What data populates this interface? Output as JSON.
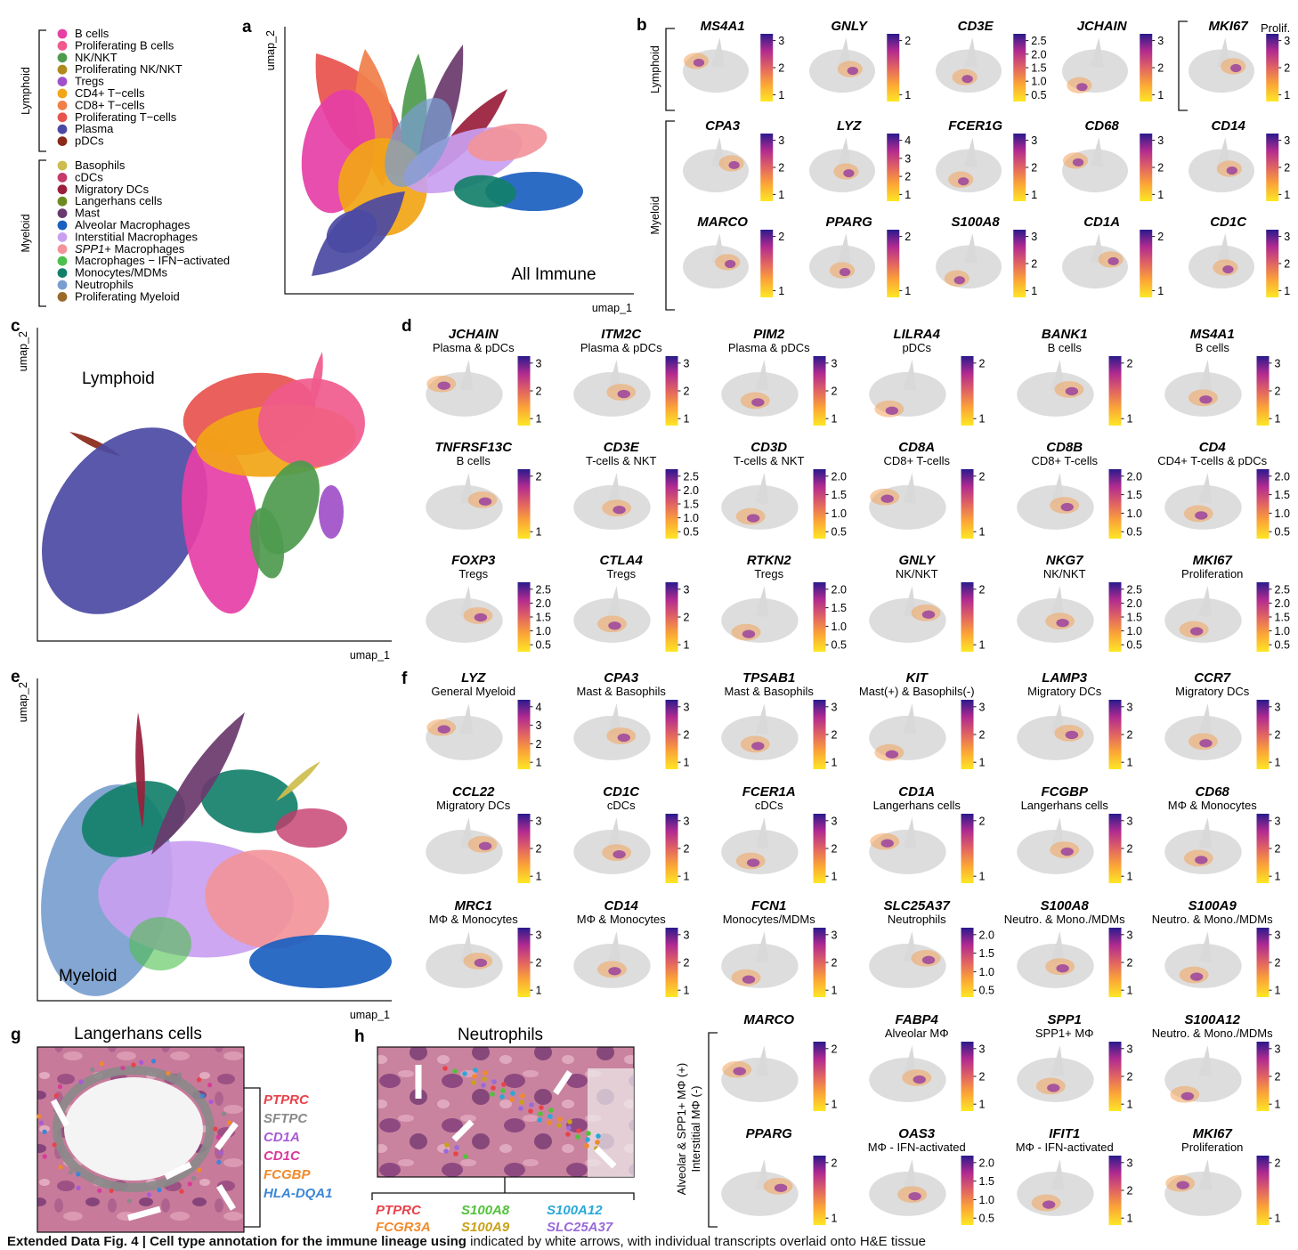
{
  "colors": {
    "B_cells": "#e63fa6",
    "Proliferating_B": "#f05a8c",
    "NK": "#4e9a4e",
    "Prolif_NK": "#b08a1e",
    "Tregs": "#a050c8",
    "CD4": "#f2a516",
    "CD8": "#f07f4a",
    "Prolif_T": "#e8534e",
    "Plasma": "#4b4aa3",
    "pDCs": "#8b2a1a",
    "Basophils": "#cdbd4e",
    "cDCs": "#c43a6a",
    "Migratory_DCs": "#9a1f3c",
    "Langerhans": "#6b8a1f",
    "Mast": "#6a3a6e",
    "Alveolar": "#1b5fc0",
    "Interstitial": "#c9a0f0",
    "SPP1": "#f2949a",
    "IFN": "#4cc04c",
    "Monocytes": "#13806a",
    "Neutrophils": "#7a9ecf",
    "Prolif_Myeloid": "#9a6a2a"
  },
  "panel_a": {
    "label": "a",
    "lymphoid_group": "Lymphoid",
    "myeloid_group": "Myeloid",
    "legend": [
      {
        "text": "B cells",
        "color": "#e63fa6"
      },
      {
        "text": "Proliferating B cells",
        "color": "#f05a8c"
      },
      {
        "text": "NK/NKT",
        "color": "#4e9a4e"
      },
      {
        "text": "Proliferating NK/NKT",
        "color": "#b08a1e"
      },
      {
        "text": "Tregs",
        "color": "#a050c8"
      },
      {
        "text": "CD4+ T−cells",
        "color": "#f2a516"
      },
      {
        "text": "CD8+ T−cells",
        "color": "#f07f4a"
      },
      {
        "text": "Proliferating T−cells",
        "color": "#e8534e"
      },
      {
        "text": "Plasma",
        "color": "#4b4aa3"
      },
      {
        "text": "pDCs",
        "color": "#8b2a1a"
      },
      {
        "text": "Basophils",
        "color": "#cdbd4e"
      },
      {
        "text": "cDCs",
        "color": "#c43a6a"
      },
      {
        "text": "Migratory DCs",
        "color": "#9a1f3c"
      },
      {
        "text": "Langerhans cells",
        "color": "#6b8a1f"
      },
      {
        "text": "Mast",
        "color": "#6a3a6e"
      },
      {
        "text": "Alveolar Macrophages",
        "color": "#1b5fc0"
      },
      {
        "text": "Interstitial Macrophages",
        "color": "#c9a0f0"
      },
      {
        "text": "SPP1",
        "suffix": "+ Macrophages",
        "color": "#f2949a"
      },
      {
        "text": "Macrophages − IFN−activated",
        "color": "#4cc04c"
      },
      {
        "text": "Monocytes/MDMs",
        "color": "#13806a"
      },
      {
        "text": "Neutrophils",
        "color": "#7a9ecf"
      },
      {
        "text": "Proliferating Myeloid",
        "color": "#9a6a2a"
      }
    ],
    "title": "All Immune",
    "xlabel": "umap_1",
    "ylabel": "umap_2"
  },
  "panel_b": {
    "label": "b",
    "lymphoid_group": "Lymphoid",
    "myeloid_group": "Myeloid",
    "prolif_label": "Prolif.",
    "rows": [
      [
        {
          "gene": "MS4A1",
          "ticks": [
            "3",
            "2",
            "1"
          ]
        },
        {
          "gene": "GNLY",
          "ticks": [
            "2",
            "1"
          ]
        },
        {
          "gene": "CD3E",
          "ticks": [
            "2.5",
            "2.0",
            "1.5",
            "1.0",
            "0.5"
          ]
        },
        {
          "gene": "JCHAIN",
          "ticks": [
            "3",
            "2",
            "1"
          ]
        },
        {
          "gene": "MKI67",
          "ticks": [
            "3",
            "2",
            "1"
          ]
        }
      ],
      [
        {
          "gene": "CPA3",
          "ticks": [
            "3",
            "2",
            "1"
          ]
        },
        {
          "gene": "LYZ",
          "ticks": [
            "4",
            "3",
            "2",
            "1"
          ]
        },
        {
          "gene": "FCER1G",
          "ticks": [
            "3",
            "2",
            "1"
          ]
        },
        {
          "gene": "CD68",
          "ticks": [
            "3",
            "2",
            "1"
          ]
        },
        {
          "gene": "CD14",
          "ticks": [
            "3",
            "2",
            "1"
          ]
        }
      ],
      [
        {
          "gene": "MARCO",
          "ticks": [
            "2",
            "1"
          ]
        },
        {
          "gene": "PPARG",
          "ticks": [
            "2",
            "1"
          ]
        },
        {
          "gene": "S100A8",
          "ticks": [
            "3",
            "2",
            "1"
          ]
        },
        {
          "gene": "CD1A",
          "ticks": [
            "2",
            "1"
          ]
        },
        {
          "gene": "CD1C",
          "ticks": [
            "3",
            "2",
            "1"
          ]
        }
      ]
    ]
  },
  "panel_c": {
    "label": "c",
    "title": "Lymphoid",
    "xlabel": "umap_1",
    "ylabel": "umap_2"
  },
  "panel_d": {
    "label": "d",
    "rows": [
      [
        {
          "gene": "JCHAIN",
          "sub": "Plasma & pDCs",
          "ticks": [
            "3",
            "2",
            "1"
          ]
        },
        {
          "gene": "ITM2C",
          "sub": "Plasma & pDCs",
          "ticks": [
            "3",
            "2",
            "1"
          ]
        },
        {
          "gene": "PIM2",
          "sub": "Plasma & pDCs",
          "ticks": [
            "3",
            "2",
            "1"
          ]
        },
        {
          "gene": "LILRA4",
          "sub": "pDCs",
          "ticks": [
            "2",
            "1"
          ]
        },
        {
          "gene": "BANK1",
          "sub": "B cells",
          "ticks": [
            "2",
            "1"
          ]
        },
        {
          "gene": "MS4A1",
          "sub": "B cells",
          "ticks": [
            "3",
            "2",
            "1"
          ]
        }
      ],
      [
        {
          "gene": "TNFRSF13C",
          "sub": "B cells",
          "ticks": [
            "2",
            "1"
          ]
        },
        {
          "gene": "CD3E",
          "sub": "T-cells & NKT",
          "ticks": [
            "2.5",
            "2.0",
            "1.5",
            "1.0",
            "0.5"
          ]
        },
        {
          "gene": "CD3D",
          "sub": "T-cells & NKT",
          "ticks": [
            "2.0",
            "1.5",
            "1.0",
            "0.5"
          ]
        },
        {
          "gene": "CD8A",
          "sub": "CD8+ T-cells",
          "ticks": [
            "2",
            "1"
          ]
        },
        {
          "gene": "CD8B",
          "sub": "CD8+ T-cells",
          "ticks": [
            "2.0",
            "1.5",
            "1.0",
            "0.5"
          ]
        },
        {
          "gene": "CD4",
          "sub": "CD4+ T-cells & pDCs",
          "ticks": [
            "2.0",
            "1.5",
            "1.0",
            "0.5"
          ]
        }
      ],
      [
        {
          "gene": "FOXP3",
          "sub": "Tregs",
          "ticks": [
            "2.5",
            "2.0",
            "1.5",
            "1.0",
            "0.5"
          ]
        },
        {
          "gene": "CTLA4",
          "sub": "Tregs",
          "ticks": [
            "3",
            "2",
            "1"
          ]
        },
        {
          "gene": "RTKN2",
          "sub": "Tregs",
          "ticks": [
            "2.0",
            "1.5",
            "1.0",
            "0.5"
          ]
        },
        {
          "gene": "GNLY",
          "sub": "NK/NKT",
          "ticks": [
            "2",
            "1"
          ]
        },
        {
          "gene": "NKG7",
          "sub": "NK/NKT",
          "ticks": [
            "2.5",
            "2.0",
            "1.5",
            "1.0",
            "0.5"
          ]
        },
        {
          "gene": "MKI67",
          "sub": "Proliferation",
          "ticks": [
            "2.5",
            "2.0",
            "1.5",
            "1.0",
            "0.5"
          ]
        }
      ]
    ]
  },
  "panel_e": {
    "label": "e",
    "title": "Myeloid",
    "xlabel": "umap_1",
    "ylabel": "umap_2"
  },
  "panel_f": {
    "label": "f",
    "rows": [
      [
        {
          "gene": "LYZ",
          "sub": "General Myeloid",
          "ticks": [
            "4",
            "3",
            "2",
            "1"
          ]
        },
        {
          "gene": "CPA3",
          "sub": "Mast & Basophils",
          "ticks": [
            "3",
            "2",
            "1"
          ]
        },
        {
          "gene": "TPSAB1",
          "sub": "Mast & Basophils",
          "ticks": [
            "3",
            "2",
            "1"
          ]
        },
        {
          "gene": "KIT",
          "sub": "Mast(+) & Basophils(-)",
          "ticks": [
            "3",
            "2",
            "1"
          ]
        },
        {
          "gene": "LAMP3",
          "sub": "Migratory DCs",
          "ticks": [
            "3",
            "2",
            "1"
          ]
        },
        {
          "gene": "CCR7",
          "sub": "Migratory DCs",
          "ticks": [
            "3",
            "2",
            "1"
          ]
        }
      ],
      [
        {
          "gene": "CCL22",
          "sub": "Migratory DCs",
          "ticks": [
            "3",
            "2",
            "1"
          ]
        },
        {
          "gene": "CD1C",
          "sub": "cDCs",
          "ticks": [
            "3",
            "2",
            "1"
          ]
        },
        {
          "gene": "FCER1A",
          "sub": "cDCs",
          "ticks": [
            "3",
            "2",
            "1"
          ]
        },
        {
          "gene": "CD1A",
          "sub": "Langerhans cells",
          "ticks": [
            "2",
            "1"
          ]
        },
        {
          "gene": "FCGBP",
          "sub": "Langerhans cells",
          "ticks": [
            "3",
            "2",
            "1"
          ]
        },
        {
          "gene": "CD68",
          "sub": "MΦ & Monocytes",
          "ticks": [
            "3",
            "2",
            "1"
          ]
        }
      ],
      [
        {
          "gene": "MRC1",
          "sub": "MΦ & Monocytes",
          "ticks": [
            "3",
            "2",
            "1"
          ]
        },
        {
          "gene": "CD14",
          "sub": "MΦ & Monocytes",
          "ticks": [
            "3",
            "2",
            "1"
          ]
        },
        {
          "gene": "FCN1",
          "sub": "Monocytes/MDMs",
          "ticks": [
            "3",
            "2",
            "1"
          ]
        },
        {
          "gene": "SLC25A37",
          "sub": "Neutrophils",
          "ticks": [
            "2.0",
            "1.5",
            "1.0",
            "0.5"
          ]
        },
        {
          "gene": "S100A8",
          "sub": "Neutro. & Mono./MDMs",
          "ticks": [
            "3",
            "2",
            "1"
          ]
        },
        {
          "gene": "S100A9",
          "sub": "Neutro. & Mono./MDMs",
          "ticks": [
            "3",
            "2",
            "1"
          ]
        }
      ],
      [
        {
          "gene": "MARCO",
          "sub": "",
          "ticks": [
            "2",
            "1"
          ]
        },
        {
          "gene": "FABP4",
          "sub": "Alveolar MΦ",
          "ticks": [
            "3",
            "2",
            "1"
          ]
        },
        {
          "gene": "SPP1",
          "sub": "SPP1+ MΦ",
          "ticks": [
            "3",
            "2",
            "1"
          ]
        },
        {
          "gene": "S100A12",
          "sub": "Neutro. & Mono./MDMs",
          "ticks": [
            "3",
            "2",
            "1"
          ]
        }
      ],
      [
        {
          "gene": "PPARG",
          "sub": "",
          "ticks": [
            "2",
            "1"
          ]
        },
        {
          "gene": "OAS3",
          "sub": "MΦ - IFN-activated",
          "ticks": [
            "2.0",
            "1.5",
            "1.0",
            "0.5"
          ]
        },
        {
          "gene": "IFIT1",
          "sub": "MΦ - IFN-activated",
          "ticks": [
            "3",
            "2",
            "1"
          ]
        },
        {
          "gene": "MKI67",
          "sub": "Proliferation",
          "ticks": [
            "2",
            "1"
          ]
        }
      ]
    ],
    "bracket_text_1": "Alveolar & SPP1+ MΦ (+)",
    "bracket_text_2": "Interstitial MΦ (-)"
  },
  "panel_g": {
    "label": "g",
    "title": "Langerhans cells",
    "genes": [
      {
        "text": "PTPRC",
        "color": "#e8424a"
      },
      {
        "text": "SFTPC",
        "color": "#8a8a8a"
      },
      {
        "text": "CD1A",
        "color": "#a85ad8"
      },
      {
        "text": "CD1C",
        "color": "#d83a9a"
      },
      {
        "text": "FCGBP",
        "color": "#f08a2a"
      },
      {
        "text": "HLA-DQA1",
        "color": "#3a86d8"
      }
    ]
  },
  "panel_h": {
    "label": "h",
    "title": "Neutrophils",
    "genes": [
      {
        "text": "PTPRC",
        "color": "#e8424a"
      },
      {
        "text": "S100A8",
        "color": "#52c23a"
      },
      {
        "text": "S100A12",
        "color": "#2aa8d8"
      },
      {
        "text": "FCGR3A",
        "color": "#f08a2a"
      },
      {
        "text": "S100A9",
        "color": "#c9a21a"
      },
      {
        "text": "SLC25A37",
        "color": "#9a6ad8"
      }
    ]
  },
  "caption": {
    "bold": "Extended Data Fig. 4 | Cell type annotation for the immune lineage using",
    "rest": "indicated by white arrows, with individual transcripts overlaid onto H&E tissue"
  }
}
